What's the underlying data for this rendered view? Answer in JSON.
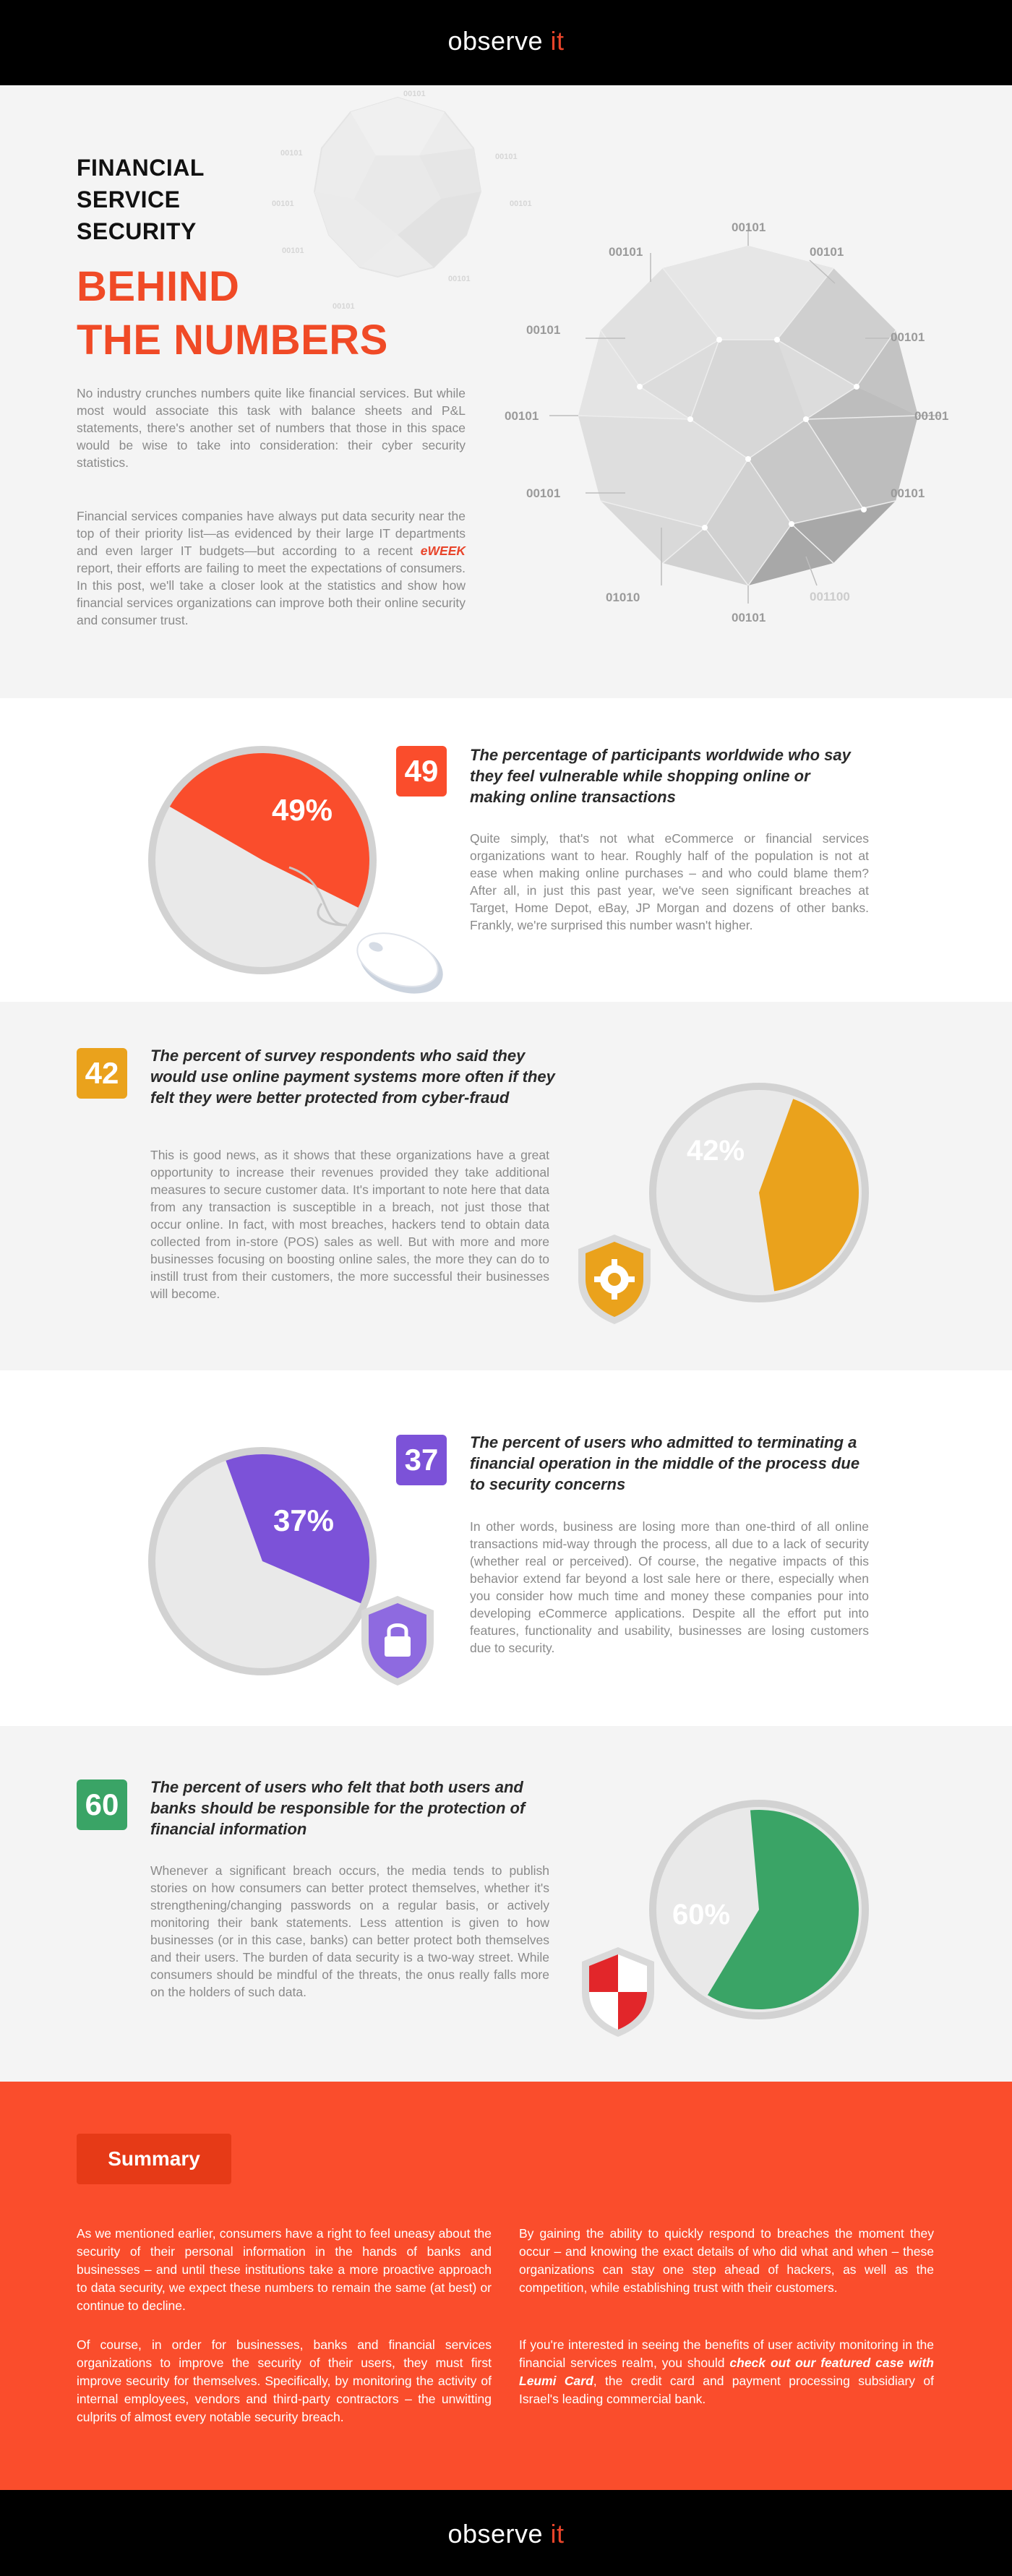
{
  "brand": {
    "logo_text": "observe",
    "logo_suffix": "it",
    "accent": "#fa4d2c"
  },
  "hero": {
    "title_small": [
      "FINANCIAL",
      "SERVICE",
      "SECURITY"
    ],
    "title_big": [
      "BEHIND",
      "THE NUMBERS"
    ],
    "para1": "No industry crunches numbers quite like financial services. But while most would associate this task with balance sheets and P&L statements, there's another set of numbers that those in this space would be wise to take into consideration: their cyber security statistics.",
    "para2_before": "Financial services companies have always put data security near the top of their priority list—as evidenced by their large IT departments and even larger IT budgets—but according to a recent ",
    "para2_em": "eWEEK",
    "para2_after": " report, their efforts are failing to meet the expectations of consumers. In this post, we'll take a closer look at the statistics and show how financial services organizations can improve both their online security and consumer trust.",
    "binary_labels": [
      "00101",
      "00101",
      "00101",
      "00101",
      "00101",
      "00101",
      "00101",
      "00101",
      "01010",
      "00101",
      "001100",
      "00101"
    ]
  },
  "stats": [
    {
      "number": "49",
      "pie_label": "49%",
      "value": 49,
      "color": "#fa4d2c",
      "heading": "The percentage of participants worldwide who say they feel vulnerable while shopping online or making online transactions",
      "body": "Quite simply, that's not what eCommerce or financial services organizations want to hear. Roughly half of the population is not at ease when making online purchases – and who could blame them? After all, in just this past year, we've seen significant breaches at Target, Home Depot, eBay, JP Morgan and dozens of other banks. Frankly, we're surprised this number wasn't higher.",
      "icon": "mouse-icon"
    },
    {
      "number": "42",
      "pie_label": "42%",
      "value": 42,
      "color": "#eaa21c",
      "heading": "The percent of survey respondents who said they would use online payment systems more often if they felt they were better protected from cyber-fraud",
      "body": "This is good news, as it shows that these organizations have a great opportunity to increase their revenues provided they take additional measures to secure customer data. It's important to note here that data from any transaction is susceptible in a breach, not just those that occur online. In fact, with most breaches, hackers tend to obtain data collected from in-store (POS) sales as well. But with more and more businesses focusing on boosting online sales, the more they can do to instill trust from their customers, the more successful their businesses will become.",
      "icon": "gear-shield-icon"
    },
    {
      "number": "37",
      "pie_label": "37%",
      "value": 37,
      "color": "#7c52d8",
      "heading": "The percent of users who admitted to terminating a financial operation in the middle of the process due to security concerns",
      "body": "In other words, business are losing more than one-third of all online transactions mid-way through the process, all due to a lack of security (whether real or perceived). Of course, the negative impacts of this behavior extend far beyond a lost sale here or there, especially when you consider how much time and money these companies pour into developing eCommerce applications. Despite all the effort put into features, functionality and usability, businesses are losing customers due to security.",
      "icon": "lock-shield-icon"
    },
    {
      "number": "60",
      "pie_label": "60%",
      "value": 60,
      "color": "#3aa466",
      "heading": "The percent of users who felt that both users and banks should be responsible for the protection of financial information",
      "body": "Whenever a significant breach occurs, the media tends to publish stories on how consumers can better protect themselves, whether it's strengthening/changing passwords on a regular basis, or actively monitoring their bank statements. Less attention is given to how businesses (or in this case, banks) can better protect both themselves and their users. The burden of data security is a two-way street. While consumers should be mindful of the threats, the onus really falls more on the holders of such data.",
      "icon": "checkered-shield-icon"
    }
  ],
  "summary": {
    "button": "Summary",
    "col1_p1": "As we mentioned earlier, consumers have a right to feel uneasy about the security of their personal information in the hands of banks and businesses – and until these institutions take a more proactive approach to data security, we expect these numbers to remain the same (at best) or continue to decline.",
    "col1_p2": "Of course, in order for businesses, banks and financial services organizations to improve the security of their users, they must first improve security for themselves. Specifically, by monitoring the activity of internal employees, vendors and third-party contractors – the unwitting culprits of almost every notable security breach.",
    "col2_p1": "By gaining the ability to quickly respond to breaches the moment they occur – and knowing the exact details of who did what and when – these organizations can stay one step ahead of hackers, as well as the competition, while establishing trust with their customers.",
    "col2_p2_before": "If you're interested in seeing the benefits of user activity monitoring in the financial services realm, you should ",
    "col2_p2_link": "check out our featured case with Leumi Card",
    "col2_p2_after": ", the credit card and payment processing subsidiary of Israel's leading commercial bank."
  }
}
